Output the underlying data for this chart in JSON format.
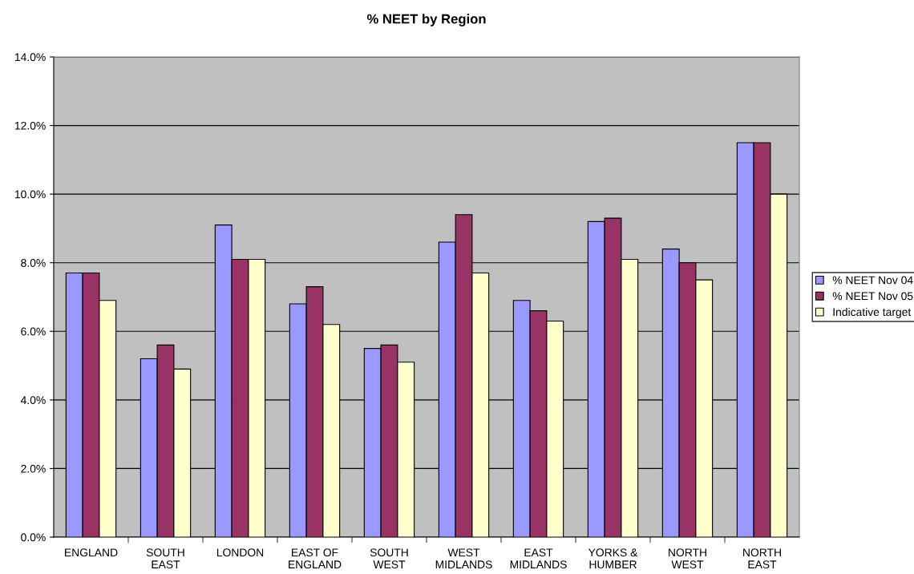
{
  "chart_data": {
    "type": "bar",
    "title": "% NEET by Region",
    "categories": [
      "ENGLAND",
      "SOUTH\nEAST",
      "LONDON",
      "EAST OF\nENGLAND",
      "SOUTH\nWEST",
      "WEST\nMIDLANDS",
      "EAST\nMIDLANDS",
      "YORKS &\nHUMBER",
      "NORTH\nWEST",
      "NORTH\nEAST"
    ],
    "series": [
      {
        "name": "% NEET Nov 04",
        "color": "#9999ff",
        "values": [
          7.7,
          5.2,
          9.1,
          6.8,
          5.5,
          8.6,
          6.9,
          9.2,
          8.4,
          11.5
        ]
      },
      {
        "name": "% NEET Nov 05",
        "color": "#993366",
        "values": [
          7.7,
          5.6,
          8.1,
          7.3,
          5.6,
          9.4,
          6.6,
          9.3,
          8.0,
          11.5
        ]
      },
      {
        "name": "Indicative target",
        "color": "#ffffcc",
        "values": [
          6.9,
          4.9,
          8.1,
          6.2,
          5.1,
          7.7,
          6.3,
          8.1,
          7.5,
          10.0
        ]
      }
    ],
    "ylim": [
      0,
      14
    ],
    "yticks": [
      {
        "value": 0,
        "label": "0.0%"
      },
      {
        "value": 2,
        "label": "2.0%"
      },
      {
        "value": 4,
        "label": "4.0%"
      },
      {
        "value": 6,
        "label": "6.0%"
      },
      {
        "value": 8,
        "label": "8.0%"
      },
      {
        "value": 10,
        "label": "10.0%"
      },
      {
        "value": 12,
        "label": "12.0%"
      },
      {
        "value": 14,
        "label": "14.0%"
      }
    ],
    "grid": "y",
    "legend": "right"
  }
}
